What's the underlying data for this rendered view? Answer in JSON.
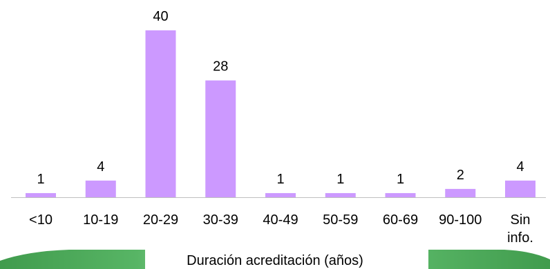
{
  "chart_data": {
    "type": "bar",
    "categories": [
      "<10",
      "10-19",
      "20-29",
      "30-39",
      "40-49",
      "50-59",
      "60-69",
      "90-100",
      "Sin info."
    ],
    "values": [
      1,
      4,
      40,
      28,
      1,
      1,
      1,
      2,
      4
    ],
    "title": "",
    "xlabel": "Duración acreditación (años)",
    "ylabel": "",
    "ylim": [
      0,
      40
    ],
    "grid": false,
    "legend": "none",
    "bar_color": "#cc99ff",
    "axis_color": "#bfbfbf",
    "footer_accent_color": "#2f9e3a"
  }
}
